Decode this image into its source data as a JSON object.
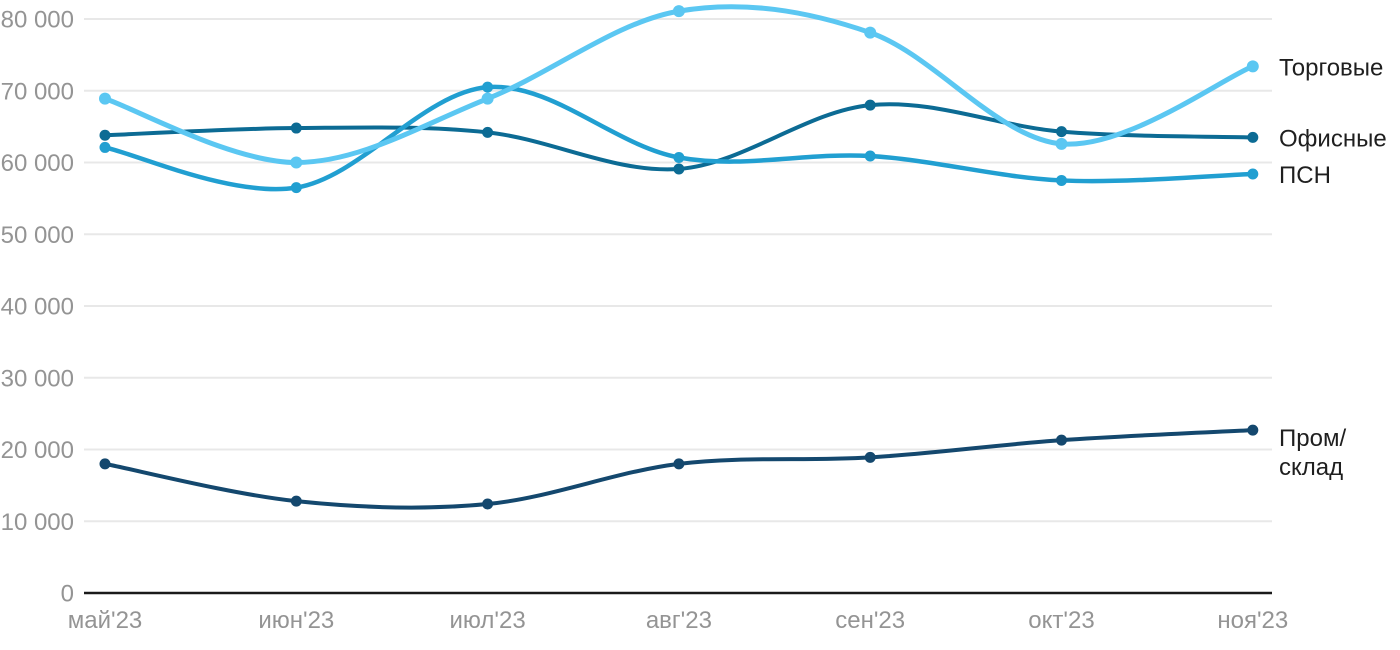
{
  "chart_data": {
    "type": "line",
    "title": "",
    "xlabel": "",
    "ylabel": "",
    "x": [
      "май'23",
      "июн'23",
      "июл'23",
      "авг'23",
      "сен'23",
      "окт'23",
      "ноя'23"
    ],
    "ylim": [
      0,
      81500
    ],
    "grid": "horizontal",
    "legend_position": "right-of-last-point",
    "yticks": [
      {
        "value": 0,
        "label": "0"
      },
      {
        "value": 10000,
        "label": "10 000"
      },
      {
        "value": 20000,
        "label": "20 000"
      },
      {
        "value": 30000,
        "label": "30 000"
      },
      {
        "value": 40000,
        "label": "40 000"
      },
      {
        "value": 50000,
        "label": "50 000"
      },
      {
        "value": 60000,
        "label": "60 000"
      },
      {
        "value": 70000,
        "label": "70 000"
      },
      {
        "value": 80000,
        "label": "80 000"
      }
    ],
    "series": [
      {
        "key": "prom-sklad",
        "name": "Пром/склад",
        "label_lines": [
          "Пром/",
          "склад"
        ],
        "color": "#14486e",
        "line_width": 4,
        "marker_radius": 5.5,
        "values": [
          18000,
          12800,
          12400,
          18000,
          18900,
          21300,
          22700
        ]
      },
      {
        "key": "ofisnye",
        "name": "Офисные",
        "label_lines": [
          "Офисные"
        ],
        "color": "#0c6b94",
        "line_width": 4,
        "marker_radius": 5.5,
        "values": [
          63800,
          64800,
          64200,
          59100,
          68000,
          64300,
          63500
        ]
      },
      {
        "key": "psn",
        "name": "ПСН",
        "label_lines": [
          "ПСН"
        ],
        "color": "#219fd1",
        "line_width": 4.5,
        "marker_radius": 5.5,
        "values": [
          62100,
          56500,
          70500,
          60700,
          60900,
          57500,
          58400
        ]
      },
      {
        "key": "torgovye",
        "name": "Торговые",
        "label_lines": [
          "Торговые"
        ],
        "color": "#5bc7f2",
        "line_width": 5,
        "marker_radius": 6,
        "values": [
          68900,
          60000,
          68900,
          81100,
          78100,
          62600,
          73400
        ]
      }
    ],
    "styles": {
      "background": "#ffffff",
      "grid_color": "#e8e8e8",
      "axis_color": "#1a1a1a",
      "tick_color": "#949494",
      "series_label_color": "#1f1f1f"
    }
  }
}
